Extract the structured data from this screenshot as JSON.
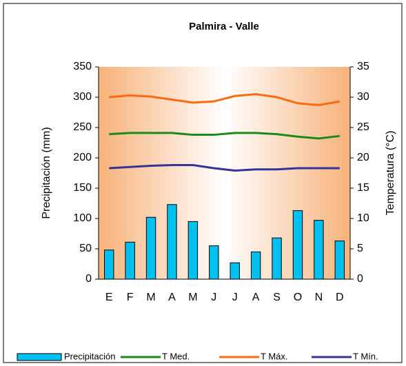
{
  "chart_data": {
    "type": "bar",
    "title": "Palmira - Valle",
    "y_label": "Precipitación (mm)",
    "y2_label": "Temperatura (°C)",
    "categories": [
      "E",
      "F",
      "M",
      "A",
      "M",
      "J",
      "J",
      "A",
      "S",
      "O",
      "N",
      "D"
    ],
    "series": [
      {
        "name": "Precipitación",
        "type": "bar",
        "color": "#00c0f0",
        "values": [
          48,
          61,
          102,
          123,
          95,
          55,
          27,
          45,
          68,
          113,
          97,
          63
        ]
      },
      {
        "name": "T Med.",
        "type": "line",
        "axis": "y2",
        "color": "#1a8a1a",
        "values": [
          23.9,
          24.1,
          24.1,
          24.1,
          23.8,
          23.8,
          24.1,
          24.1,
          23.9,
          23.5,
          23.2,
          23.6
        ]
      },
      {
        "name": "T Máx.",
        "type": "line",
        "axis": "y2",
        "color": "#ff6a10",
        "values": [
          30.0,
          30.3,
          30.1,
          29.6,
          29.1,
          29.3,
          30.2,
          30.5,
          30.0,
          29.0,
          28.7,
          29.3
        ]
      },
      {
        "name": "T Mín.",
        "type": "line",
        "axis": "y2",
        "color": "#333399",
        "values": [
          18.3,
          18.5,
          18.7,
          18.8,
          18.8,
          18.3,
          17.9,
          18.1,
          18.1,
          18.3,
          18.3,
          18.3
        ]
      }
    ],
    "ylim": [
      0,
      350
    ],
    "yticks": [
      0,
      50,
      100,
      150,
      200,
      250,
      300,
      350
    ],
    "y2lim": [
      0,
      35
    ],
    "y2ticks": [
      0,
      5,
      10,
      15,
      20,
      25,
      30,
      35
    ]
  }
}
